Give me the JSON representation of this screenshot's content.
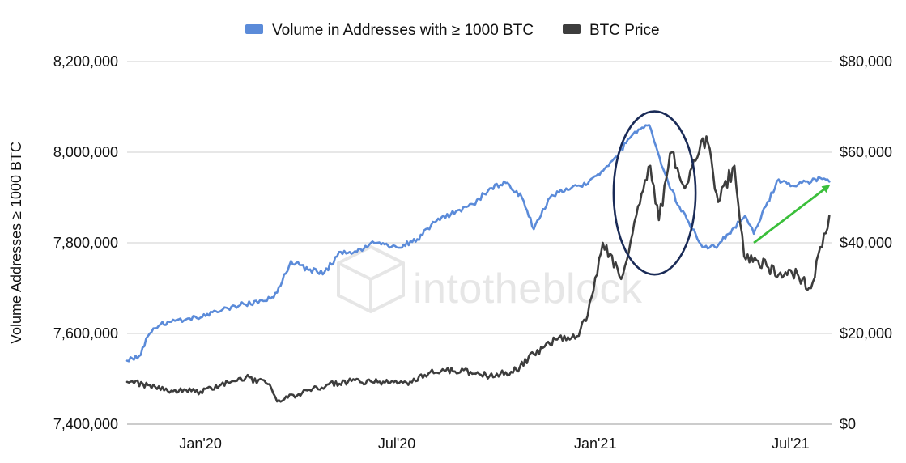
{
  "chart_data": {
    "type": "line",
    "title": "",
    "legend": {
      "placement": "top-center",
      "entries": [
        {
          "name": "Volume in Addresses with ≥ 1000 BTC",
          "color": "#5b8bd9"
        },
        {
          "name": "BTC Price",
          "color": "#3d3d3d"
        }
      ]
    },
    "y_left": {
      "label": "Volume Addresses ≥ 1000 BTC",
      "range": [
        7400000,
        8200000
      ],
      "ticks": [
        7400000,
        7600000,
        7800000,
        8000000,
        8200000
      ],
      "tick_labels": [
        "7,400,000",
        "7,600,000",
        "7,800,000",
        "8,000,000",
        "8,200,000"
      ]
    },
    "y_right": {
      "label": "",
      "range": [
        0,
        80000
      ],
      "ticks": [
        0,
        20000,
        40000,
        60000,
        80000
      ],
      "tick_labels": [
        "$0",
        "$20,000",
        "$40,000",
        "$60,000",
        "$80,000"
      ]
    },
    "x_axis": {
      "range": [
        "2019-10-25",
        "2021-08-08"
      ],
      "ticks": [
        "2020-01-01",
        "2020-07-01",
        "2021-01-01",
        "2021-07-01"
      ],
      "tick_labels": [
        "Jan'20",
        "Jul'20",
        "Jan'21",
        "Jul'21"
      ]
    },
    "grid": true,
    "series": [
      {
        "name": "Volume in Addresses with ≥ 1000 BTC",
        "axis": "left",
        "color": "#5b8bd9",
        "points": [
          [
            "2019-10-25",
            7540000
          ],
          [
            "2019-11-05",
            7550000
          ],
          [
            "2019-11-15",
            7600000
          ],
          [
            "2019-11-25",
            7620000
          ],
          [
            "2019-12-10",
            7630000
          ],
          [
            "2020-01-01",
            7635000
          ],
          [
            "2020-01-20",
            7650000
          ],
          [
            "2020-02-10",
            7665000
          ],
          [
            "2020-03-01",
            7672000
          ],
          [
            "2020-03-12",
            7690000
          ],
          [
            "2020-03-25",
            7760000
          ],
          [
            "2020-04-10",
            7740000
          ],
          [
            "2020-04-25",
            7735000
          ],
          [
            "2020-05-10",
            7780000
          ],
          [
            "2020-05-25",
            7780000
          ],
          [
            "2020-06-10",
            7800000
          ],
          [
            "2020-07-01",
            7790000
          ],
          [
            "2020-07-20",
            7808000
          ],
          [
            "2020-08-05",
            7845000
          ],
          [
            "2020-08-25",
            7870000
          ],
          [
            "2020-09-10",
            7885000
          ],
          [
            "2020-09-25",
            7920000
          ],
          [
            "2020-10-10",
            7932000
          ],
          [
            "2020-10-25",
            7900000
          ],
          [
            "2020-11-05",
            7830000
          ],
          [
            "2020-11-20",
            7900000
          ],
          [
            "2020-12-05",
            7920000
          ],
          [
            "2020-12-25",
            7930000
          ],
          [
            "2021-01-05",
            7950000
          ],
          [
            "2021-01-20",
            7990000
          ],
          [
            "2021-02-05",
            8040000
          ],
          [
            "2021-02-20",
            8060000
          ],
          [
            "2021-02-28",
            8000000
          ],
          [
            "2021-03-10",
            7930000
          ],
          [
            "2021-03-20",
            7880000
          ],
          [
            "2021-04-01",
            7830000
          ],
          [
            "2021-04-12",
            7790000
          ],
          [
            "2021-04-25",
            7795000
          ],
          [
            "2021-05-08",
            7830000
          ],
          [
            "2021-05-20",
            7860000
          ],
          [
            "2021-05-28",
            7820000
          ],
          [
            "2021-06-08",
            7880000
          ],
          [
            "2021-06-20",
            7940000
          ],
          [
            "2021-07-01",
            7925000
          ],
          [
            "2021-07-15",
            7935000
          ],
          [
            "2021-08-01",
            7942000
          ],
          [
            "2021-08-06",
            7935000
          ]
        ]
      },
      {
        "name": "BTC Price",
        "axis": "right",
        "color": "#3d3d3d",
        "points": [
          [
            "2019-10-25",
            9300
          ],
          [
            "2019-11-15",
            8600
          ],
          [
            "2019-12-05",
            7400
          ],
          [
            "2020-01-01",
            7200
          ],
          [
            "2020-01-20",
            8700
          ],
          [
            "2020-02-12",
            10300
          ],
          [
            "2020-03-05",
            8800
          ],
          [
            "2020-03-12",
            5000
          ],
          [
            "2020-04-01",
            6600
          ],
          [
            "2020-04-29",
            8800
          ],
          [
            "2020-05-20",
            9500
          ],
          [
            "2020-06-15",
            9400
          ],
          [
            "2020-07-15",
            9200
          ],
          [
            "2020-08-01",
            11500
          ],
          [
            "2020-09-01",
            11900
          ],
          [
            "2020-09-25",
            10600
          ],
          [
            "2020-10-20",
            11900
          ],
          [
            "2020-11-05",
            15500
          ],
          [
            "2020-11-25",
            18700
          ],
          [
            "2020-12-15",
            19400
          ],
          [
            "2020-12-25",
            24000
          ],
          [
            "2021-01-08",
            40000
          ],
          [
            "2021-01-25",
            32000
          ],
          [
            "2021-02-08",
            46000
          ],
          [
            "2021-02-21",
            57000
          ],
          [
            "2021-03-01",
            45000
          ],
          [
            "2021-03-13",
            60000
          ],
          [
            "2021-03-25",
            52000
          ],
          [
            "2021-04-14",
            63500
          ],
          [
            "2021-04-25",
            49000
          ],
          [
            "2021-05-10",
            57000
          ],
          [
            "2021-05-19",
            37000
          ],
          [
            "2021-06-01",
            36000
          ],
          [
            "2021-06-20",
            33000
          ],
          [
            "2021-07-01",
            34000
          ],
          [
            "2021-07-20",
            30000
          ],
          [
            "2021-08-01",
            42000
          ],
          [
            "2021-08-06",
            46000
          ]
        ]
      }
    ],
    "annotations": [
      {
        "type": "ellipse",
        "color": "#1a2b57",
        "center": [
          "2021-02-25",
          7910000
        ],
        "rx_days": 38,
        "ry_value": 180000
      },
      {
        "type": "arrow",
        "color": "#3bbf3b",
        "from": [
          "2021-05-28",
          7800000
        ],
        "to": [
          "2021-08-05",
          7925000
        ]
      }
    ],
    "watermark": "intotheblock"
  }
}
